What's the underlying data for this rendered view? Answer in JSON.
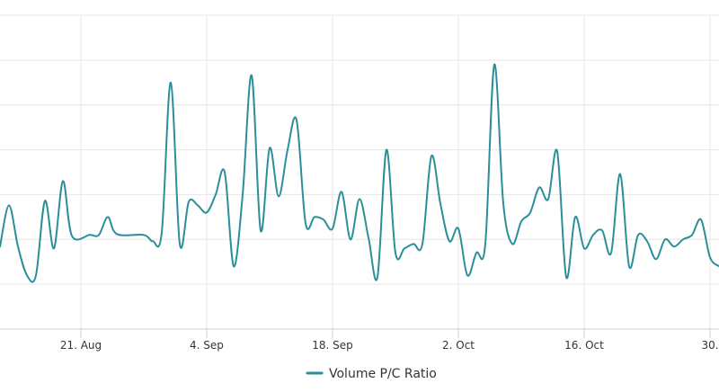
{
  "chart_data": {
    "type": "line",
    "title": "",
    "xlabel": "",
    "ylabel": "",
    "x_tick_labels": [
      "21. Aug",
      "4. Sep",
      "18. Sep",
      "2. Oct",
      "16. Oct",
      "30."
    ],
    "x_ticks": [
      "2023-08-21",
      "2023-09-04",
      "2023-09-18",
      "2023-10-02",
      "2023-10-16",
      "2023-10-30"
    ],
    "xlim": [
      "2023-08-12",
      "2023-10-31"
    ],
    "ylim": [
      0,
      3.5
    ],
    "y_gridlines": [
      0,
      0.5,
      1,
      1.5,
      2,
      2.5,
      3,
      3.5
    ],
    "y_tick_labels_visible": false,
    "grid": true,
    "legend": {
      "position": "bottom-center"
    },
    "colors": {
      "series": "#2b8f99",
      "grid": "#e6e6e6",
      "axis": "#c0d0e0"
    },
    "series": [
      {
        "name": "Volume P/C Ratio",
        "points": [
          [
            "2023-08-12",
            0.92
          ],
          [
            "2023-08-13",
            1.38
          ],
          [
            "2023-08-14",
            0.92
          ],
          [
            "2023-08-15",
            0.6
          ],
          [
            "2023-08-16",
            0.6
          ],
          [
            "2023-08-17",
            1.43
          ],
          [
            "2023-08-18",
            0.9
          ],
          [
            "2023-08-19",
            1.65
          ],
          [
            "2023-08-20",
            1.04
          ],
          [
            "2023-08-22",
            1.05
          ],
          [
            "2023-08-23",
            1.05
          ],
          [
            "2023-08-24",
            1.25
          ],
          [
            "2023-08-25",
            1.06
          ],
          [
            "2023-08-28",
            1.05
          ],
          [
            "2023-08-29",
            0.98
          ],
          [
            "2023-08-30",
            1.08
          ],
          [
            "2023-08-31",
            2.75
          ],
          [
            "2023-09-01",
            0.95
          ],
          [
            "2023-09-02",
            1.42
          ],
          [
            "2023-09-03",
            1.38
          ],
          [
            "2023-09-04",
            1.3
          ],
          [
            "2023-09-05",
            1.5
          ],
          [
            "2023-09-06",
            1.75
          ],
          [
            "2023-09-07",
            0.7
          ],
          [
            "2023-09-08",
            1.5
          ],
          [
            "2023-09-09",
            2.83
          ],
          [
            "2023-09-10",
            1.1
          ],
          [
            "2023-09-11",
            2.02
          ],
          [
            "2023-09-12",
            1.48
          ],
          [
            "2023-09-13",
            2.0
          ],
          [
            "2023-09-14",
            2.33
          ],
          [
            "2023-09-15",
            1.18
          ],
          [
            "2023-09-16",
            1.25
          ],
          [
            "2023-09-17",
            1.22
          ],
          [
            "2023-09-18",
            1.12
          ],
          [
            "2023-09-19",
            1.53
          ],
          [
            "2023-09-20",
            1.0
          ],
          [
            "2023-09-21",
            1.45
          ],
          [
            "2023-09-22",
            1.02
          ],
          [
            "2023-09-23",
            0.58
          ],
          [
            "2023-09-24",
            2.0
          ],
          [
            "2023-09-25",
            0.85
          ],
          [
            "2023-09-26",
            0.9
          ],
          [
            "2023-09-27",
            0.95
          ],
          [
            "2023-09-28",
            0.95
          ],
          [
            "2023-09-29",
            1.93
          ],
          [
            "2023-09-30",
            1.4
          ],
          [
            "2023-10-01",
            0.98
          ],
          [
            "2023-10-02",
            1.12
          ],
          [
            "2023-10-03",
            0.6
          ],
          [
            "2023-10-04",
            0.85
          ],
          [
            "2023-10-05",
            0.95
          ],
          [
            "2023-10-06",
            2.95
          ],
          [
            "2023-10-07",
            1.4
          ],
          [
            "2023-10-08",
            0.95
          ],
          [
            "2023-10-09",
            1.2
          ],
          [
            "2023-10-10",
            1.3
          ],
          [
            "2023-10-11",
            1.58
          ],
          [
            "2023-10-12",
            1.45
          ],
          [
            "2023-10-13",
            1.98
          ],
          [
            "2023-10-14",
            0.58
          ],
          [
            "2023-10-15",
            1.25
          ],
          [
            "2023-10-16",
            0.9
          ],
          [
            "2023-10-17",
            1.05
          ],
          [
            "2023-10-18",
            1.1
          ],
          [
            "2023-10-19",
            0.85
          ],
          [
            "2023-10-20",
            1.73
          ],
          [
            "2023-10-21",
            0.7
          ],
          [
            "2023-10-22",
            1.05
          ],
          [
            "2023-10-23",
            0.98
          ],
          [
            "2023-10-24",
            0.78
          ],
          [
            "2023-10-25",
            1.0
          ],
          [
            "2023-10-26",
            0.92
          ],
          [
            "2023-10-27",
            1.0
          ],
          [
            "2023-10-28",
            1.05
          ],
          [
            "2023-10-29",
            1.22
          ],
          [
            "2023-10-30",
            0.8
          ],
          [
            "2023-10-31",
            0.7
          ]
        ]
      }
    ]
  }
}
